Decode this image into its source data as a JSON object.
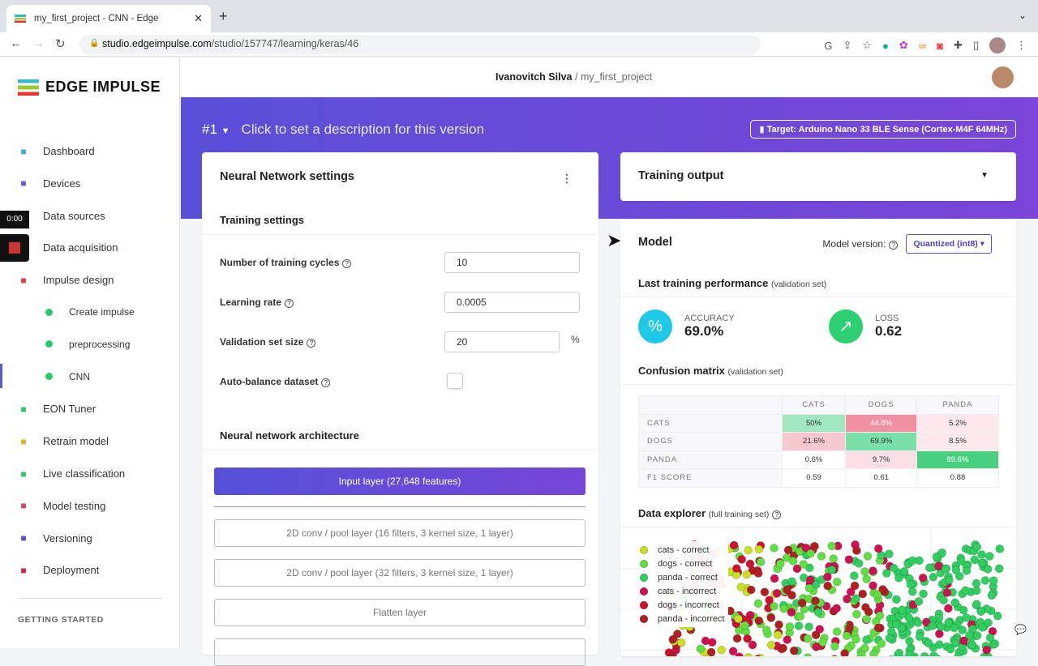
{
  "browser": {
    "tab_title": "my_first_project - CNN - Edge",
    "url_host": "studio.edgeimpulse.com",
    "url_path": "/studio/157747/learning/keras/46"
  },
  "sidebar": {
    "brand": "EDGE IMPULSE",
    "items": [
      {
        "label": "Dashboard",
        "icon": "monitor-icon",
        "color": "#3ab0d8"
      },
      {
        "label": "Devices",
        "icon": "chip-icon",
        "color": "#6a5ad8"
      },
      {
        "label": "Data sources",
        "icon": "database-icon",
        "color": "#555"
      },
      {
        "label": "Data acquisition",
        "icon": "stack-icon",
        "color": "#555"
      },
      {
        "label": "Impulse design",
        "icon": "pulse-icon",
        "color": "#e04040"
      }
    ],
    "sub_items": [
      {
        "label": "Create impulse"
      },
      {
        "label": "preprocessing"
      },
      {
        "label": "CNN",
        "active": true
      }
    ],
    "items2": [
      {
        "label": "EON Tuner",
        "icon": "compass-icon",
        "color": "#2c6"
      },
      {
        "label": "Retrain model",
        "icon": "shuffle-icon",
        "color": "#e8b020"
      },
      {
        "label": "Live classification",
        "icon": "signal-icon",
        "color": "#2c6"
      },
      {
        "label": "Model testing",
        "icon": "clipboard-icon",
        "color": "#e04060"
      },
      {
        "label": "Versioning",
        "icon": "branch-icon",
        "color": "#5a4fd8"
      },
      {
        "label": "Deployment",
        "icon": "box-icon",
        "color": "#e02040"
      }
    ],
    "section": "GETTING STARTED"
  },
  "video_overlay": {
    "time": "0:00"
  },
  "header": {
    "user": "Ivanovitch Silva",
    "separator": "/",
    "project": "my_first_project"
  },
  "version": {
    "label": "#1",
    "description": "Click to set a description for this version",
    "target": "Target: Arduino Nano 33 BLE Sense (Cortex-M4F 64MHz)"
  },
  "nn": {
    "title": "Neural Network settings",
    "training_title": "Training settings",
    "fields": [
      {
        "label": "Number of training cycles",
        "value": "10"
      },
      {
        "label": "Learning rate",
        "value": "0.0005"
      },
      {
        "label": "Validation set size",
        "value": "20",
        "unit": "%"
      },
      {
        "label": "Auto-balance dataset",
        "checked": false
      }
    ],
    "arch_title": "Neural network architecture",
    "layers": [
      "Input layer (27,648 features)",
      "2D conv / pool layer (16 filters, 3 kernel size, 1 layer)",
      "2D conv / pool layer (32 filters, 3 kernel size, 1 layer)",
      "Flatten layer"
    ]
  },
  "output": {
    "title": "Training output"
  },
  "model": {
    "title": "Model",
    "version_label": "Model version:",
    "version_value": "Quantized (int8)",
    "perf_title": "Last training performance",
    "perf_note": "(validation set)",
    "accuracy_label": "ACCURACY",
    "accuracy": "69.0%",
    "loss_label": "LOSS",
    "loss": "0.62",
    "cm_title": "Confusion matrix",
    "cm_note": "(validation set)",
    "cm": {
      "cols": [
        "CATS",
        "DOGS",
        "PANDA"
      ],
      "rows": [
        {
          "label": "CATS",
          "cells": [
            "50%",
            "44.8%",
            "5.2%"
          ],
          "colors": [
            "#a0e8c0",
            "#f090a0",
            "#fde8ec"
          ]
        },
        {
          "label": "DOGS",
          "cells": [
            "21.6%",
            "69.9%",
            "8.5%"
          ],
          "colors": [
            "#f8c8d0",
            "#78e0a8",
            "#fde8ec"
          ]
        },
        {
          "label": "PANDA",
          "cells": [
            "0.6%",
            "9.7%",
            "89.6%"
          ],
          "colors": [
            "#ffffff",
            "#fce0e6",
            "#48d080"
          ]
        },
        {
          "label": "F1 SCORE",
          "cells": [
            "0.59",
            "0.61",
            "0.88"
          ],
          "colors": [
            "#fff",
            "#fff",
            "#fff"
          ]
        }
      ]
    },
    "de_title": "Data explorer",
    "de_note": "(full training set)",
    "legend": [
      {
        "label": "cats - correct",
        "color": "#c8e020"
      },
      {
        "label": "dogs - correct",
        "color": "#60e040"
      },
      {
        "label": "panda - correct",
        "color": "#30d060"
      },
      {
        "label": "cats - incorrect",
        "color": "#d01050"
      },
      {
        "label": "dogs - incorrect",
        "color": "#d01030"
      },
      {
        "label": "panda - incorrect",
        "color": "#b02020"
      }
    ]
  }
}
